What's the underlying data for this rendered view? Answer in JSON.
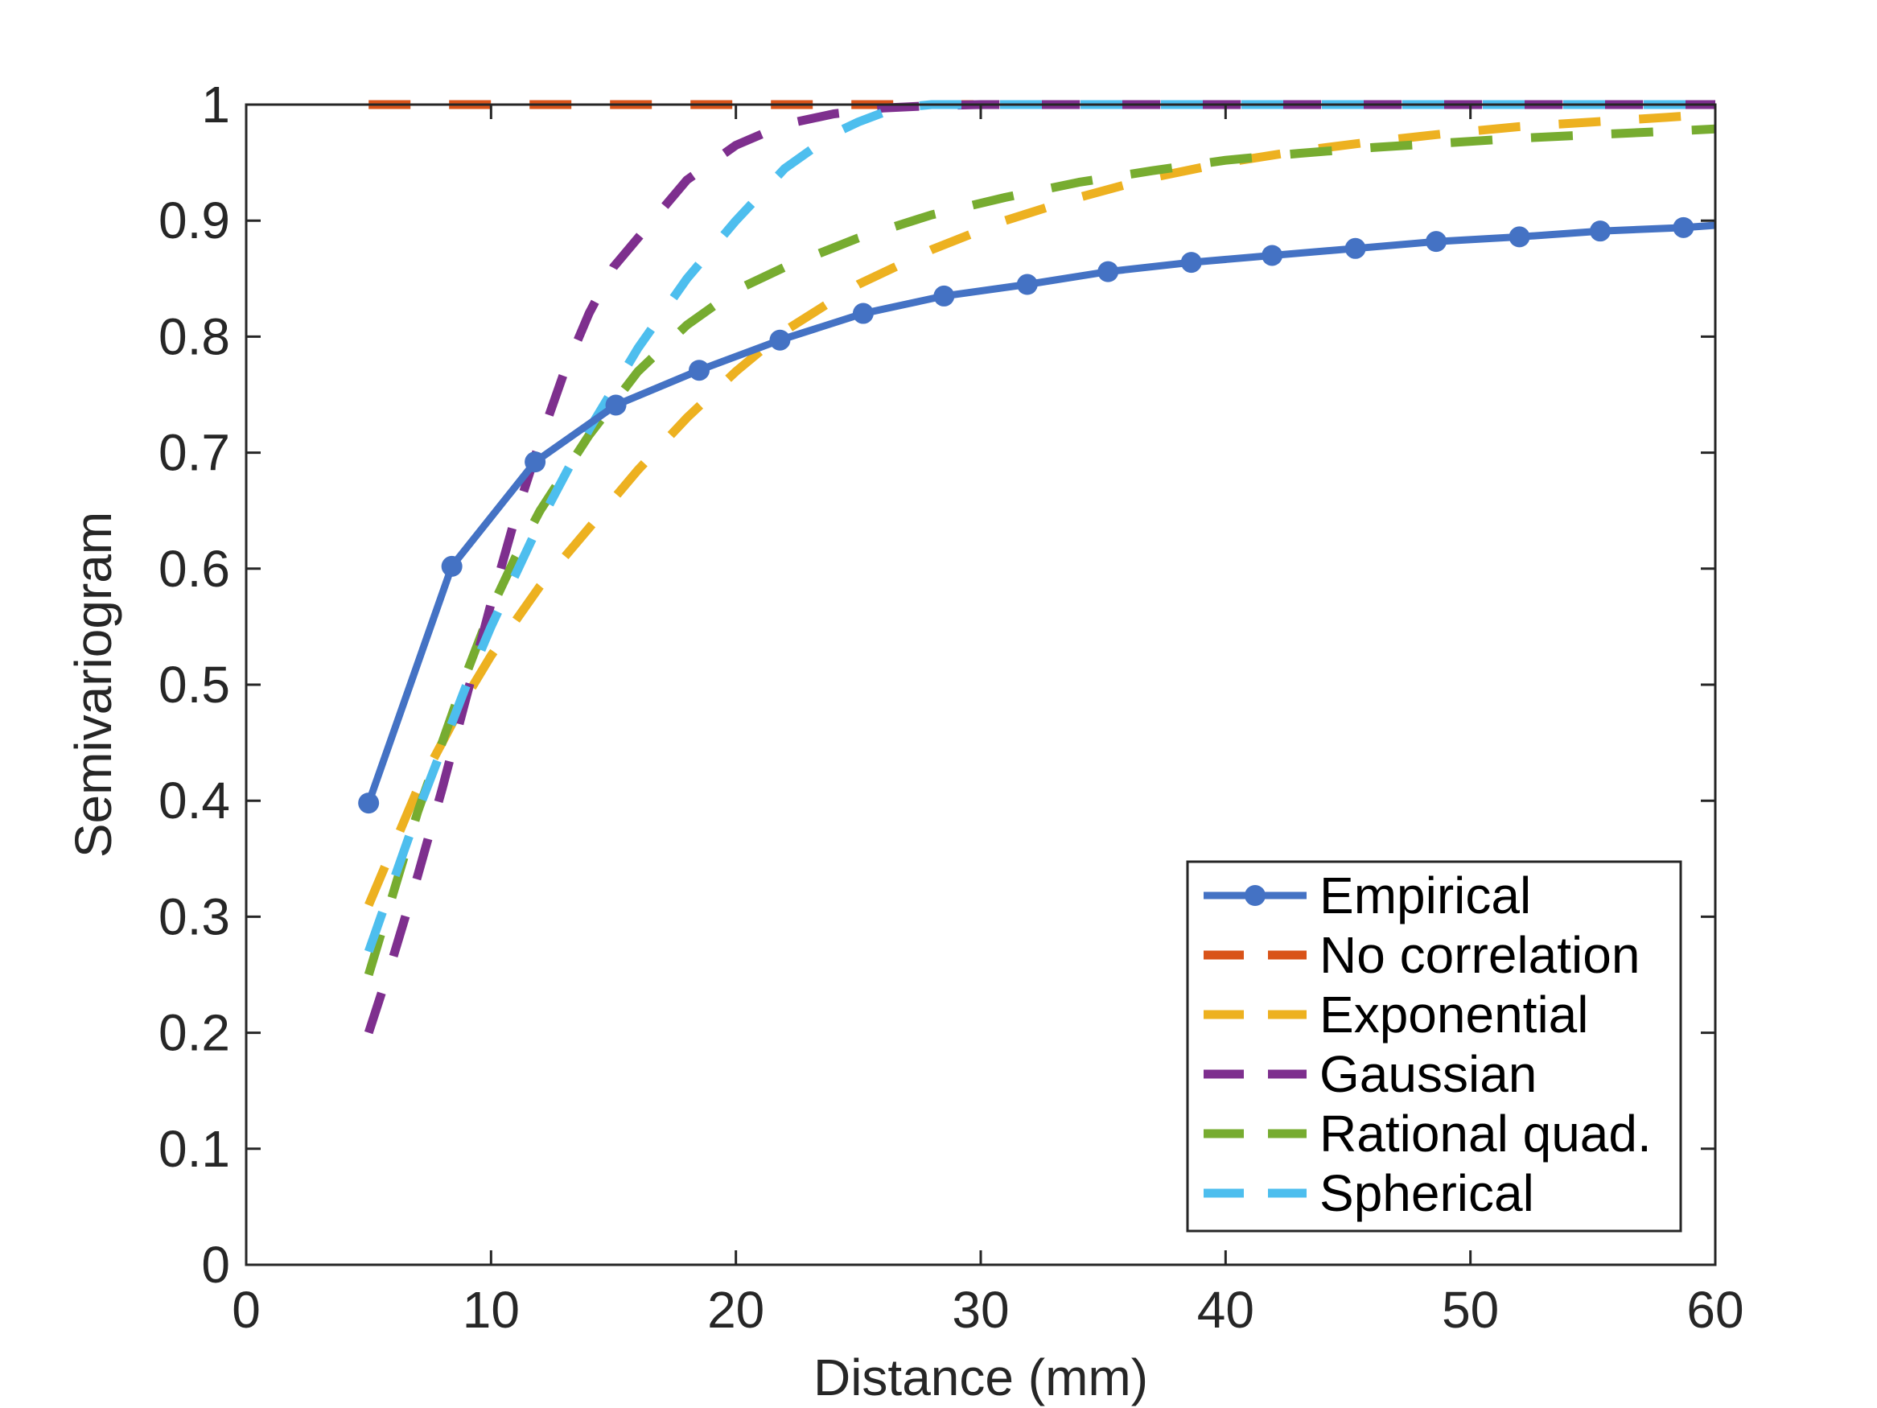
{
  "chart_data": {
    "type": "line",
    "title": "",
    "xlabel": "Distance (mm)",
    "ylabel": "Semivariogram",
    "xlim": [
      0,
      60
    ],
    "ylim": [
      0,
      1
    ],
    "xticks": [
      0,
      10,
      20,
      30,
      40,
      50,
      60
    ],
    "xtick_labels": [
      "0",
      "10",
      "20",
      "30",
      "40",
      "50",
      "60"
    ],
    "yticks": [
      0,
      0.1,
      0.2,
      0.3,
      0.4,
      0.5,
      0.6,
      0.7,
      0.8,
      0.9,
      1
    ],
    "ytick_labels": [
      "0",
      "0.1",
      "0.2",
      "0.3",
      "0.4",
      "0.5",
      "0.6",
      "0.7",
      "0.8",
      "0.9",
      "1"
    ],
    "grid": false,
    "legend_position": "bottom-right",
    "series": [
      {
        "name": "Empirical",
        "color": "#4472C4",
        "style": "solid-markers",
        "x": [
          5,
          8.4,
          11.8,
          15.1,
          18.5,
          21.8,
          25.2,
          28.5,
          31.9,
          35.2,
          38.6,
          41.9,
          45.3,
          48.6,
          52.0,
          55.3,
          58.7,
          60
        ],
        "y": [
          0.398,
          0.602,
          0.692,
          0.741,
          0.771,
          0.797,
          0.82,
          0.835,
          0.845,
          0.856,
          0.864,
          0.87,
          0.876,
          0.882,
          0.886,
          0.891,
          0.894,
          0.896
        ]
      },
      {
        "name": "No correlation",
        "color": "#D95319",
        "style": "dashed",
        "x": [
          5,
          10,
          20,
          30,
          40,
          50,
          60
        ],
        "y": [
          1,
          1,
          1,
          1,
          1,
          1,
          1
        ]
      },
      {
        "name": "Exponential",
        "color": "#EDB120",
        "style": "dashed",
        "x": [
          5,
          6,
          7,
          8,
          9,
          10,
          12,
          14,
          16,
          18,
          20,
          22,
          25,
          28,
          31,
          34,
          37,
          40,
          43,
          46,
          49,
          52,
          55,
          58,
          60
        ],
        "y": [
          0.31,
          0.36,
          0.41,
          0.45,
          0.49,
          0.525,
          0.585,
          0.635,
          0.685,
          0.73,
          0.77,
          0.805,
          0.845,
          0.875,
          0.9,
          0.92,
          0.937,
          0.95,
          0.96,
          0.968,
          0.975,
          0.981,
          0.985,
          0.989,
          0.992
        ]
      },
      {
        "name": "Gaussian",
        "color": "#7E2F8E",
        "style": "dashed",
        "x": [
          5,
          6,
          7,
          8,
          9,
          10,
          11,
          12,
          13,
          14,
          15,
          16,
          18,
          20,
          22,
          24,
          26,
          28,
          30,
          35,
          40,
          50,
          60
        ],
        "y": [
          0.2,
          0.265,
          0.335,
          0.41,
          0.49,
          0.57,
          0.645,
          0.71,
          0.77,
          0.82,
          0.86,
          0.885,
          0.935,
          0.965,
          0.983,
          0.992,
          0.997,
          0.999,
          1,
          1,
          1,
          1,
          1
        ]
      },
      {
        "name": "Rational quad.",
        "color": "#77AC30",
        "style": "dashed",
        "x": [
          5,
          6,
          7,
          8,
          9,
          10,
          11,
          12,
          14,
          16,
          18,
          20,
          22,
          25,
          28,
          31,
          34,
          37,
          40,
          43,
          46,
          49,
          52,
          55,
          58,
          60
        ],
        "y": [
          0.25,
          0.32,
          0.39,
          0.45,
          0.51,
          0.565,
          0.61,
          0.65,
          0.715,
          0.77,
          0.81,
          0.84,
          0.86,
          0.885,
          0.905,
          0.92,
          0.933,
          0.943,
          0.952,
          0.958,
          0.963,
          0.967,
          0.971,
          0.974,
          0.977,
          0.979
        ]
      },
      {
        "name": "Spherical",
        "color": "#4DBEEE",
        "style": "dashed",
        "x": [
          5,
          6,
          7,
          8,
          9,
          10,
          12,
          14,
          16,
          18,
          20,
          22,
          24,
          25,
          26,
          27,
          28,
          30,
          40,
          50,
          60
        ],
        "y": [
          0.27,
          0.33,
          0.39,
          0.445,
          0.5,
          0.55,
          0.64,
          0.72,
          0.79,
          0.85,
          0.9,
          0.945,
          0.975,
          0.985,
          0.993,
          0.998,
          1,
          1,
          1,
          1,
          1
        ]
      }
    ]
  }
}
